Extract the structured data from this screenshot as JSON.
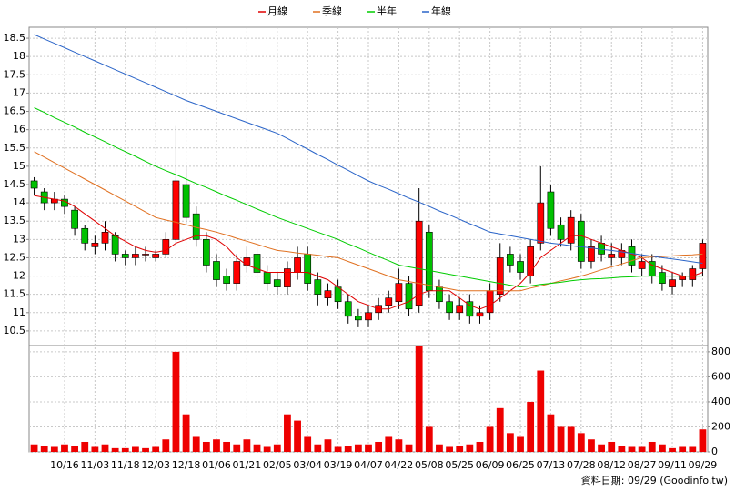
{
  "chart_data": {
    "type": "candlestick",
    "categories": [
      null,
      null,
      null,
      "10/16",
      null,
      null,
      "11/03",
      null,
      null,
      "11/18",
      null,
      null,
      "12/03",
      null,
      null,
      "12/18",
      null,
      null,
      "01/06",
      null,
      null,
      "01/21",
      null,
      null,
      "02/05",
      null,
      null,
      "03/04",
      null,
      null,
      "03/19",
      null,
      null,
      "04/07",
      null,
      null,
      "04/22",
      null,
      null,
      "05/08",
      null,
      null,
      "05/25",
      null,
      null,
      "06/09",
      null,
      null,
      "06/25",
      null,
      null,
      "07/13",
      null,
      null,
      "07/28",
      null,
      null,
      "08/12",
      null,
      null,
      "08/27",
      null,
      null,
      "09/11",
      null,
      null,
      "09/29"
    ],
    "open": [
      14.6,
      14.3,
      14.0,
      14.1,
      13.8,
      13.3,
      12.8,
      12.9,
      13.1,
      12.6,
      12.5,
      12.6,
      12.5,
      12.6,
      13.0,
      14.5,
      13.7,
      13.0,
      12.4,
      12.0,
      11.8,
      12.3,
      12.6,
      12.1,
      11.9,
      11.7,
      12.1,
      12.6,
      11.9,
      11.4,
      11.7,
      11.3,
      10.9,
      10.8,
      11.0,
      11.2,
      11.3,
      11.8,
      11.2,
      13.2,
      11.7,
      11.3,
      11.0,
      11.3,
      10.9,
      11.0,
      11.5,
      12.6,
      12.4,
      12.0,
      12.9,
      14.3,
      13.4,
      12.9,
      13.5,
      12.4,
      12.9,
      12.5,
      12.5,
      12.8,
      12.2,
      12.4,
      12.1,
      11.7,
      11.9,
      11.9,
      12.2
    ],
    "high": [
      14.7,
      14.4,
      14.3,
      14.2,
      13.9,
      13.4,
      13.1,
      13.5,
      13.2,
      12.7,
      12.8,
      12.8,
      12.7,
      13.2,
      16.1,
      15.0,
      13.9,
      13.2,
      12.6,
      12.2,
      12.6,
      12.8,
      12.8,
      12.3,
      12.1,
      12.4,
      12.8,
      12.8,
      12.1,
      11.8,
      11.9,
      11.5,
      11.1,
      11.2,
      11.4,
      11.6,
      12.2,
      12.0,
      14.4,
      13.4,
      11.9,
      11.5,
      11.4,
      11.5,
      11.2,
      11.8,
      12.9,
      12.8,
      12.6,
      13.0,
      15.0,
      14.5,
      13.6,
      13.8,
      13.7,
      13.0,
      13.1,
      12.9,
      12.9,
      13.0,
      12.6,
      12.6,
      12.3,
      12.1,
      12.1,
      12.3,
      13.0
    ],
    "low": [
      14.2,
      13.8,
      13.8,
      13.7,
      13.1,
      12.7,
      12.6,
      12.7,
      12.4,
      12.3,
      12.3,
      12.4,
      12.4,
      12.5,
      12.8,
      13.4,
      12.8,
      12.1,
      11.7,
      11.6,
      11.6,
      12.1,
      11.9,
      11.6,
      11.5,
      11.5,
      11.9,
      11.6,
      11.2,
      11.2,
      11.1,
      10.7,
      10.6,
      10.6,
      10.8,
      11.0,
      11.1,
      10.9,
      11.0,
      11.4,
      11.1,
      10.8,
      10.8,
      10.7,
      10.7,
      10.8,
      11.3,
      12.1,
      11.9,
      11.8,
      12.7,
      13.1,
      12.8,
      12.7,
      12.2,
      12.2,
      12.4,
      12.3,
      12.3,
      12.1,
      12.0,
      11.8,
      11.6,
      11.5,
      11.7,
      11.7,
      12.0
    ],
    "close": [
      14.4,
      14.0,
      14.1,
      13.9,
      13.3,
      12.9,
      12.9,
      13.2,
      12.6,
      12.5,
      12.6,
      12.6,
      12.6,
      13.0,
      14.6,
      13.6,
      13.0,
      12.3,
      11.9,
      11.8,
      12.4,
      12.5,
      12.1,
      11.8,
      11.7,
      12.2,
      12.5,
      11.8,
      11.5,
      11.6,
      11.3,
      10.9,
      10.8,
      11.0,
      11.2,
      11.4,
      11.8,
      11.1,
      13.5,
      11.6,
      11.3,
      11.0,
      11.2,
      10.9,
      11.0,
      11.6,
      12.5,
      12.3,
      12.1,
      12.8,
      14.0,
      13.3,
      13.0,
      13.6,
      12.4,
      12.8,
      12.6,
      12.6,
      12.7,
      12.3,
      12.4,
      12.0,
      11.8,
      11.9,
      12.0,
      12.2,
      12.9
    ],
    "volume": [
      60,
      50,
      40,
      60,
      50,
      80,
      40,
      60,
      30,
      30,
      40,
      30,
      40,
      100,
      800,
      300,
      120,
      80,
      100,
      80,
      60,
      100,
      60,
      40,
      60,
      300,
      250,
      120,
      60,
      100,
      40,
      50,
      60,
      60,
      80,
      120,
      100,
      60,
      850,
      200,
      60,
      40,
      50,
      60,
      80,
      200,
      350,
      150,
      120,
      400,
      650,
      300,
      200,
      200,
      150,
      100,
      60,
      80,
      50,
      40,
      40,
      80,
      60,
      30,
      40,
      40,
      180
    ],
    "up_color": "#ff0000",
    "down_color": "#00c000",
    "volume_color": "#ee0000",
    "series": [
      {
        "name": "月線",
        "color": "#e00000",
        "values": [
          14.2,
          14.15,
          14.1,
          14.05,
          13.9,
          13.7,
          13.5,
          13.3,
          13.1,
          12.95,
          12.8,
          12.7,
          12.65,
          12.7,
          12.9,
          13.0,
          13.1,
          13.1,
          13.0,
          12.8,
          12.5,
          12.3,
          12.2,
          12.1,
          12.1,
          12.1,
          12.1,
          12.1,
          12.0,
          11.9,
          11.7,
          11.5,
          11.3,
          11.2,
          11.1,
          11.1,
          11.2,
          11.3,
          11.5,
          11.6,
          11.6,
          11.6,
          11.4,
          11.2,
          11.1,
          11.2,
          11.4,
          11.6,
          11.8,
          12.1,
          12.5,
          12.7,
          12.9,
          13.1,
          13.1,
          13.0,
          12.9,
          12.8,
          12.7,
          12.6,
          12.5,
          12.3,
          12.2,
          12.1,
          12.0,
          12.0,
          12.1
        ]
      },
      {
        "name": "季線",
        "color": "#e07020",
        "values": [
          15.4,
          15.25,
          15.1,
          14.95,
          14.8,
          14.65,
          14.5,
          14.35,
          14.2,
          14.05,
          13.9,
          13.75,
          13.6,
          13.53,
          13.47,
          13.4,
          13.33,
          13.27,
          13.2,
          13.12,
          13.03,
          12.95,
          12.87,
          12.78,
          12.7,
          12.67,
          12.63,
          12.6,
          12.57,
          12.53,
          12.5,
          12.4,
          12.3,
          12.2,
          12.1,
          12.0,
          11.9,
          11.85,
          11.8,
          11.75,
          11.7,
          11.65,
          11.6,
          11.6,
          11.6,
          11.6,
          11.6,
          11.6,
          11.6,
          11.67,
          11.73,
          11.8,
          11.87,
          11.93,
          12.0,
          12.08,
          12.17,
          12.25,
          12.33,
          12.42,
          12.5,
          12.52,
          12.53,
          12.55,
          12.57,
          12.58,
          12.6
        ]
      },
      {
        "name": "半年",
        "color": "#00cc00",
        "values": [
          16.6,
          16.47,
          16.33,
          16.2,
          16.07,
          15.93,
          15.8,
          15.67,
          15.53,
          15.4,
          15.27,
          15.13,
          15.0,
          14.88,
          14.77,
          14.65,
          14.53,
          14.42,
          14.3,
          14.18,
          14.07,
          13.95,
          13.83,
          13.72,
          13.6,
          13.5,
          13.4,
          13.3,
          13.2,
          13.1,
          13.0,
          12.88,
          12.77,
          12.65,
          12.53,
          12.42,
          12.3,
          12.25,
          12.2,
          12.15,
          12.1,
          12.05,
          12.0,
          11.95,
          11.9,
          11.85,
          11.8,
          11.75,
          11.7,
          11.73,
          11.77,
          11.8,
          11.83,
          11.87,
          11.9,
          11.92,
          11.93,
          11.95,
          11.97,
          11.98,
          12.0,
          12.0,
          12.0,
          12.0,
          12.0,
          12.0,
          12.0
        ]
      },
      {
        "name": "年線",
        "color": "#2a64c8",
        "values": [
          18.6,
          18.48,
          18.36,
          18.24,
          18.12,
          18.0,
          17.88,
          17.76,
          17.64,
          17.52,
          17.4,
          17.28,
          17.16,
          17.04,
          16.92,
          16.8,
          16.7,
          16.6,
          16.5,
          16.4,
          16.3,
          16.2,
          16.1,
          16.0,
          15.9,
          15.76,
          15.61,
          15.47,
          15.32,
          15.18,
          15.03,
          14.89,
          14.74,
          14.6,
          14.48,
          14.37,
          14.25,
          14.13,
          14.02,
          13.9,
          13.78,
          13.67,
          13.55,
          13.43,
          13.32,
          13.2,
          13.15,
          13.1,
          13.05,
          13.0,
          12.95,
          12.9,
          12.87,
          12.83,
          12.8,
          12.77,
          12.73,
          12.7,
          12.66,
          12.62,
          12.58,
          12.54,
          12.5,
          12.47,
          12.43,
          12.39,
          12.35
        ]
      }
    ],
    "ylim": [
      10.1,
      18.8
    ],
    "yticks": [
      10.5,
      11,
      11.5,
      12,
      12.5,
      13,
      13.5,
      14,
      14.5,
      15,
      15.5,
      16,
      16.5,
      17,
      17.5,
      18,
      18.5
    ],
    "y2lim": [
      0,
      850
    ],
    "y2ticks": [
      0,
      200,
      400,
      600,
      800
    ],
    "grid": true,
    "legend": "top",
    "note": "資料日期: 09/29 (Goodinfo.tw)"
  }
}
